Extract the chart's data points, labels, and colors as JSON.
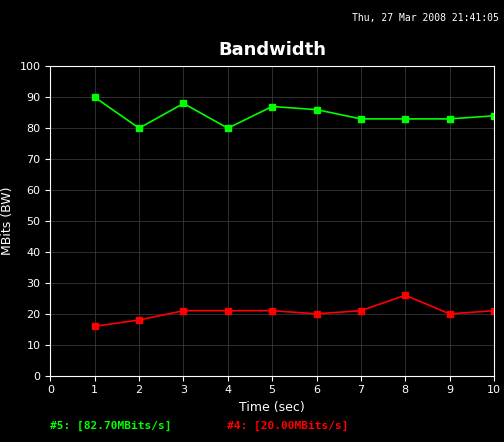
{
  "title": "Bandwidth",
  "datetime_str": "Thu, 27 Mar 2008 21:41:05",
  "xlabel": "Time (sec)",
  "ylabel": "MBits (BW)",
  "xlim": [
    0,
    10
  ],
  "ylim": [
    0,
    100
  ],
  "yticks": [
    0,
    10,
    20,
    30,
    40,
    50,
    60,
    70,
    80,
    90,
    100
  ],
  "xticks": [
    0,
    1,
    2,
    3,
    4,
    5,
    6,
    7,
    8,
    9,
    10
  ],
  "green_x": [
    1,
    2,
    3,
    4,
    5,
    6,
    7,
    8,
    9,
    10
  ],
  "green_y": [
    90,
    80,
    88,
    80,
    87,
    86,
    83,
    83,
    83,
    84
  ],
  "red_x": [
    1,
    2,
    3,
    4,
    5,
    6,
    7,
    8,
    9,
    10
  ],
  "red_y": [
    16,
    18,
    21,
    21,
    21,
    20,
    21,
    26,
    20,
    21
  ],
  "green_label": "#5: [82.70MBits/s]",
  "red_label": "#4: [20.00MBits/s]",
  "bg_color": "#000000",
  "plot_bg_color": "#000000",
  "green_color": "#00ff00",
  "red_color": "#ff0000",
  "grid_color": "#404040",
  "text_color": "#ffffff",
  "title_color": "#ffffff",
  "axis_label_color": "#ffffff",
  "tick_color": "#ffffff"
}
